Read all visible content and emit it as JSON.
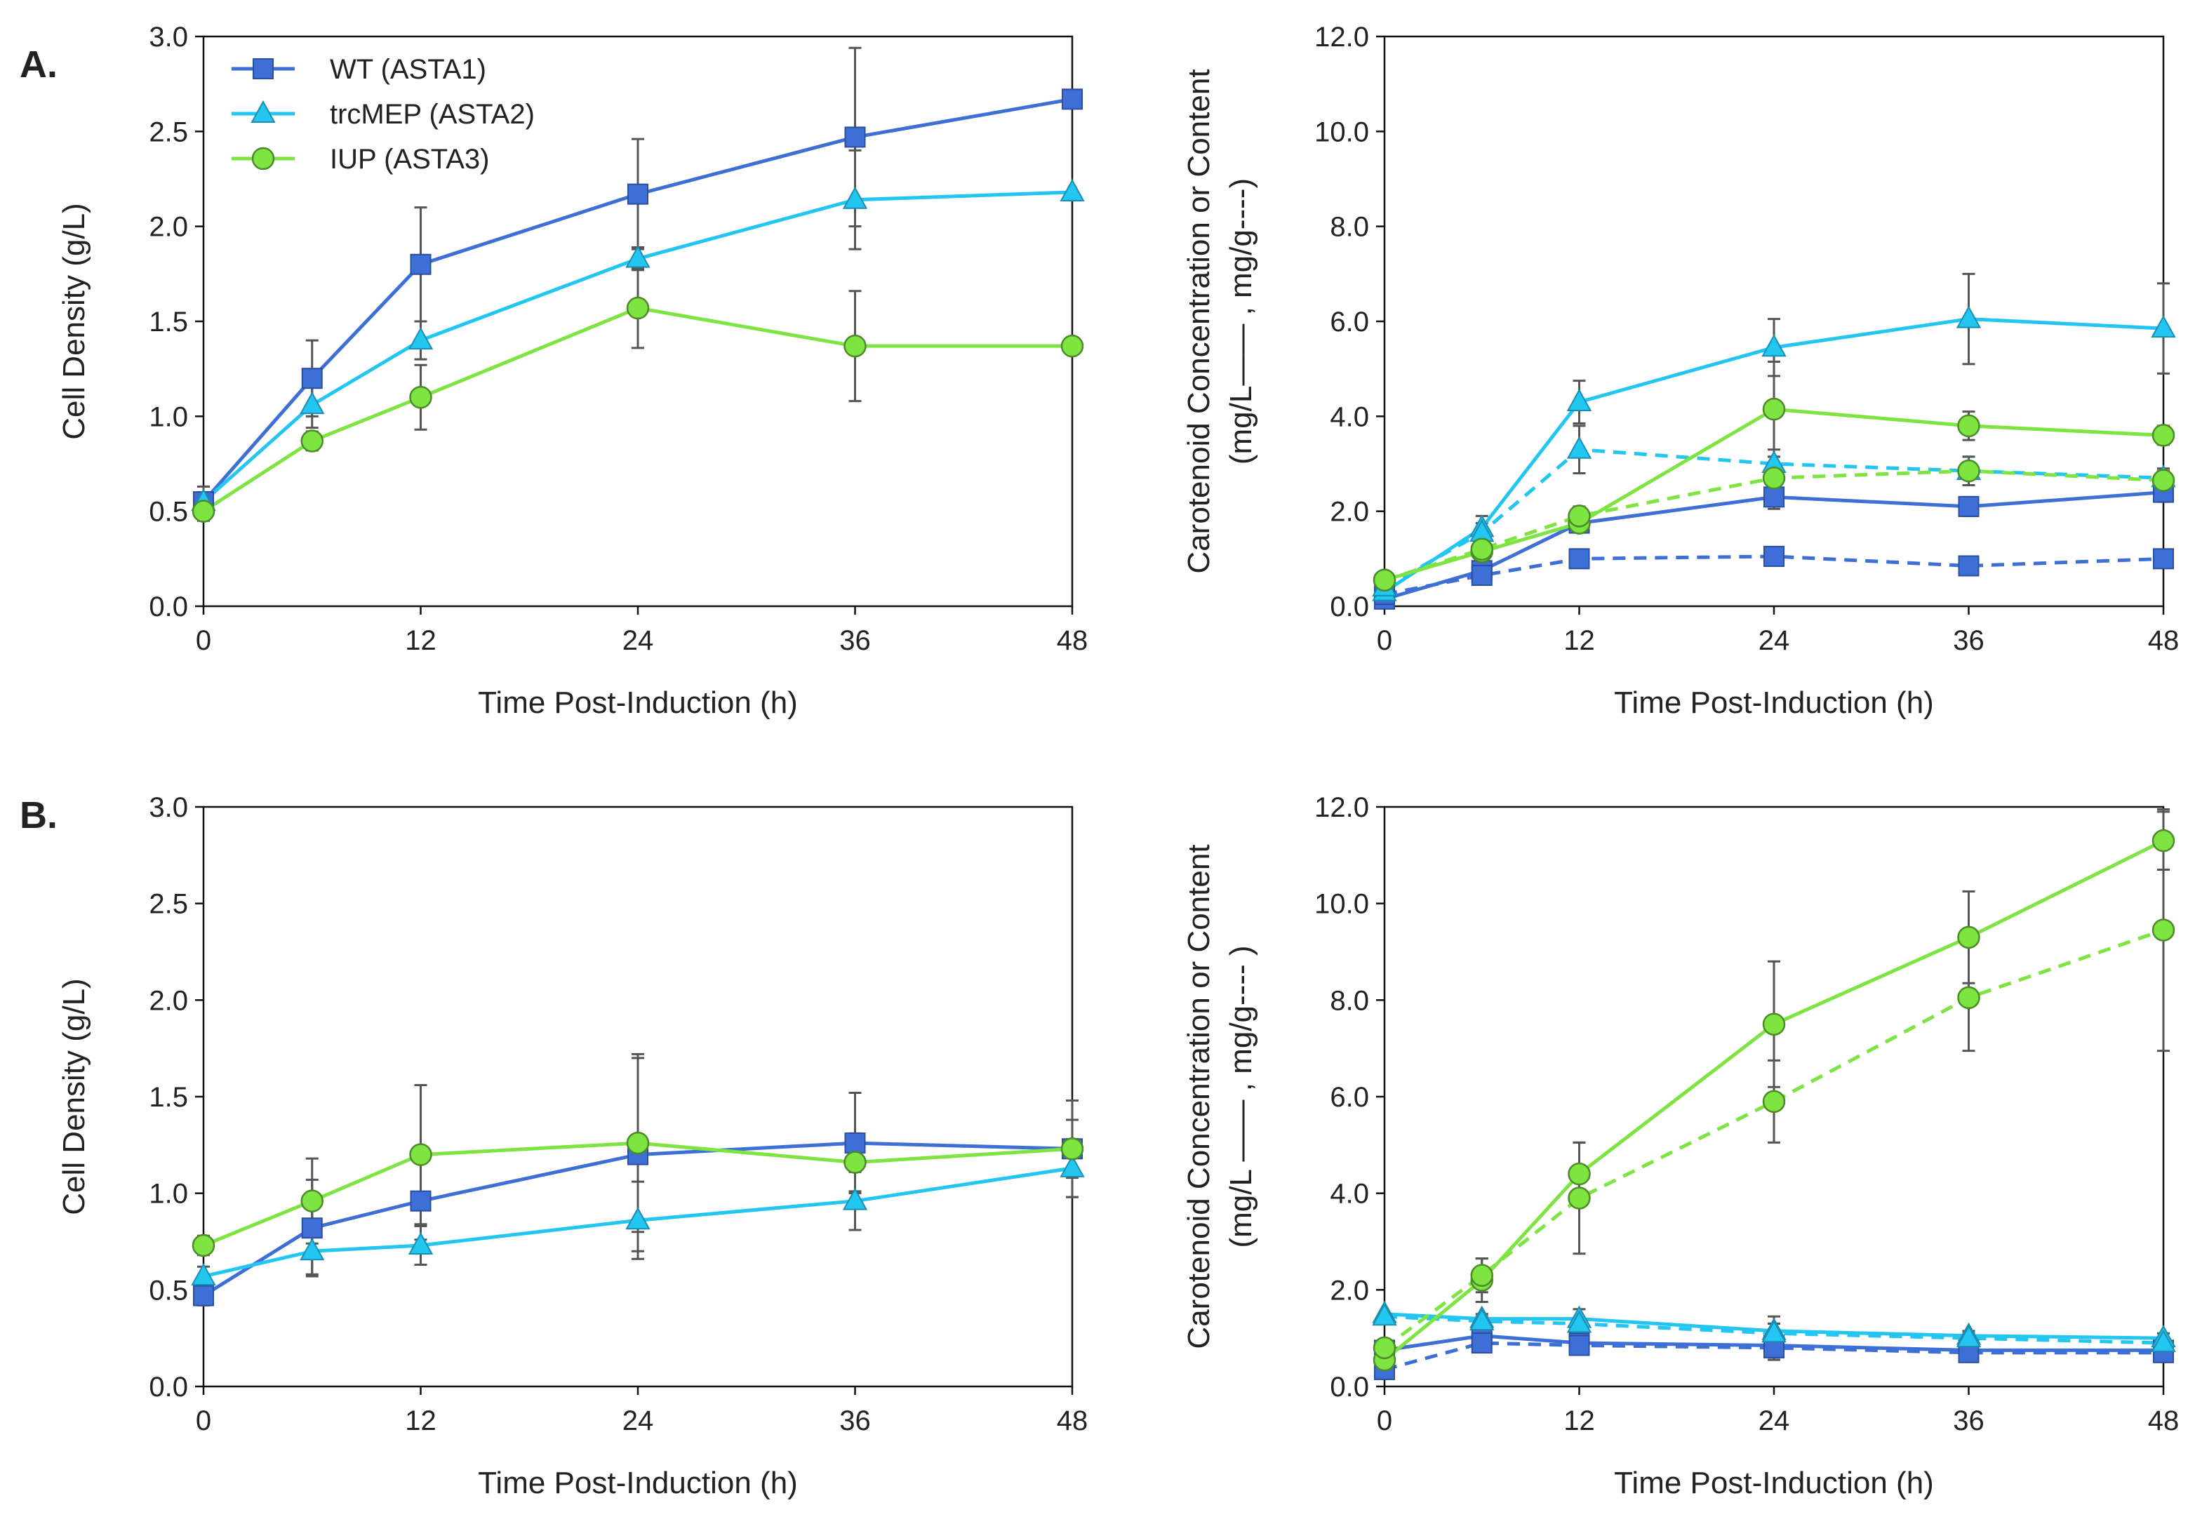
{
  "figure": {
    "panel_labels": [
      "A.",
      "B."
    ],
    "series_colors": {
      "WT": "#3d6fd6",
      "trcMEP": "#22c6f0",
      "IUP": "#7ee442"
    },
    "legend": [
      {
        "key": "WT",
        "label": "WT (ASTA1)",
        "marker": "square"
      },
      {
        "key": "trcMEP",
        "label": "trcMEP (ASTA2)",
        "marker": "triangle"
      },
      {
        "key": "IUP",
        "label": "IUP (ASTA3)",
        "marker": "circle"
      }
    ]
  },
  "chart_data": [
    {
      "id": "A-left",
      "type": "line",
      "xlabel": "Time Post-Induction (h)",
      "ylabel": "Cell Density (g/L)",
      "xlim": [
        0,
        48
      ],
      "ylim": [
        0,
        3.0
      ],
      "x_ticks": [
        0,
        12,
        24,
        36,
        48
      ],
      "y_ticks": [
        "0.0",
        "0.5",
        "1.0",
        "1.5",
        "2.0",
        "2.5",
        "3.0"
      ],
      "x": [
        0,
        6,
        12,
        24,
        36,
        48
      ],
      "series": [
        {
          "key": "WT",
          "name": "WT (ASTA1)",
          "style": "solid",
          "values": [
            0.55,
            1.2,
            1.8,
            2.17,
            2.47,
            2.67
          ],
          "err": [
            0.08,
            0.2,
            0.3,
            0.29,
            0.47,
            0.0
          ]
        },
        {
          "key": "trcMEP",
          "name": "trcMEP (ASTA2)",
          "style": "solid",
          "values": [
            0.55,
            1.06,
            1.4,
            1.83,
            2.14,
            2.18
          ],
          "err": [
            0.05,
            0.12,
            0.1,
            0.06,
            0.26,
            0.0
          ]
        },
        {
          "key": "IUP",
          "name": "IUP (ASTA3)",
          "style": "solid",
          "values": [
            0.5,
            0.87,
            1.1,
            1.57,
            1.37,
            1.37
          ],
          "err": [
            0.05,
            0.05,
            0.17,
            0.21,
            0.29,
            0.0
          ]
        }
      ]
    },
    {
      "id": "A-right",
      "type": "line",
      "xlabel": "Time Post-Induction (h)",
      "ylabel_line1": "Carotenoid Concentration or Content",
      "ylabel_line2": "(mg/L—— , mg/g----)",
      "xlim": [
        0,
        48
      ],
      "ylim": [
        0,
        12.0
      ],
      "x_ticks": [
        0,
        12,
        24,
        36,
        48
      ],
      "y_ticks": [
        "0.0",
        "2.0",
        "4.0",
        "6.0",
        "8.0",
        "10.0",
        "12.0"
      ],
      "x": [
        0,
        6,
        12,
        24,
        36,
        48
      ],
      "series": [
        {
          "key": "WT",
          "name": "WT mg/L",
          "style": "solid",
          "values": [
            0.15,
            0.75,
            1.75,
            2.3,
            2.1,
            2.4
          ],
          "err": [
            0.0,
            0.1,
            0.15,
            0.25,
            0.2,
            0.2
          ]
        },
        {
          "key": "WT",
          "name": "WT mg/g",
          "style": "dashed",
          "values": [
            0.25,
            0.65,
            1.0,
            1.05,
            0.85,
            1.0
          ],
          "err": [
            0.0,
            0.05,
            0.1,
            0.15,
            0.1,
            0.05
          ]
        },
        {
          "key": "trcMEP",
          "name": "trcMEP mg/L",
          "style": "solid",
          "values": [
            0.3,
            1.65,
            4.3,
            5.45,
            6.05,
            5.85
          ],
          "err": [
            0.0,
            0.25,
            0.45,
            0.6,
            0.95,
            0.95
          ]
        },
        {
          "key": "trcMEP",
          "name": "trcMEP mg/g",
          "style": "dashed",
          "values": [
            0.4,
            1.55,
            3.3,
            3.0,
            2.85,
            2.7
          ],
          "err": [
            0.0,
            0.2,
            0.5,
            0.3,
            0.3,
            0.2
          ]
        },
        {
          "key": "IUP",
          "name": "IUP mg/L",
          "style": "solid",
          "values": [
            0.55,
            1.15,
            1.75,
            4.15,
            3.8,
            3.6
          ],
          "err": [
            0.0,
            0.15,
            0.2,
            1.0,
            0.3,
            0.2
          ]
        },
        {
          "key": "IUP",
          "name": "IUP mg/g",
          "style": "dashed",
          "values": [
            0.55,
            1.2,
            1.9,
            2.7,
            2.85,
            2.65
          ],
          "err": [
            0.0,
            0.1,
            0.2,
            0.45,
            0.3,
            0.2
          ]
        }
      ]
    },
    {
      "id": "B-left",
      "type": "line",
      "xlabel": "Time Post-Induction (h)",
      "ylabel": "Cell Density (g/L)",
      "xlim": [
        0,
        48
      ],
      "ylim": [
        0,
        3.0
      ],
      "x_ticks": [
        0,
        12,
        24,
        36,
        48
      ],
      "y_ticks": [
        "0.0",
        "0.5",
        "1.0",
        "1.5",
        "2.0",
        "2.5",
        "3.0"
      ],
      "x": [
        0,
        6,
        12,
        24,
        36,
        48
      ],
      "series": [
        {
          "key": "WT",
          "name": "WT (ASTA1)",
          "style": "solid",
          "values": [
            0.47,
            0.82,
            0.96,
            1.2,
            1.26,
            1.23
          ],
          "err": [
            0.05,
            0.25,
            0.2,
            0.5,
            0.26,
            0.25
          ]
        },
        {
          "key": "trcMEP",
          "name": "trcMEP (ASTA2)",
          "style": "solid",
          "values": [
            0.57,
            0.7,
            0.73,
            0.86,
            0.96,
            1.13
          ],
          "err": [
            0.05,
            0.12,
            0.1,
            0.2,
            0.15,
            0.15
          ]
        },
        {
          "key": "IUP",
          "name": "IUP (ASTA3)",
          "style": "solid",
          "values": [
            0.73,
            0.96,
            1.2,
            1.26,
            1.16,
            1.23
          ],
          "err": [
            0.05,
            0.22,
            0.36,
            0.46,
            0.15,
            0.15
          ]
        }
      ]
    },
    {
      "id": "B-right",
      "type": "line",
      "xlabel": "Time Post-Induction (h)",
      "ylabel_line1": "Carotenoid Concentration or Content",
      "ylabel_line2": "(mg/L —— , mg/g---- )",
      "xlim": [
        0,
        48
      ],
      "ylim": [
        0,
        12.0
      ],
      "x_ticks": [
        0,
        12,
        24,
        36,
        48
      ],
      "y_ticks": [
        "0.0",
        "2.0",
        "4.0",
        "6.0",
        "8.0",
        "10.0",
        "12.0"
      ],
      "x": [
        0,
        6,
        12,
        24,
        36,
        48
      ],
      "series": [
        {
          "key": "WT",
          "name": "WT mg/L",
          "style": "solid",
          "values": [
            0.75,
            1.05,
            0.9,
            0.85,
            0.75,
            0.75
          ],
          "err": [
            0.0,
            0.1,
            0.1,
            0.3,
            0.1,
            0.1
          ]
        },
        {
          "key": "WT",
          "name": "WT mg/g",
          "style": "dashed",
          "values": [
            0.35,
            0.9,
            0.85,
            0.8,
            0.7,
            0.7
          ],
          "err": [
            0.0,
            0.1,
            0.1,
            0.2,
            0.1,
            0.1
          ]
        },
        {
          "key": "trcMEP",
          "name": "trcMEP mg/L",
          "style": "solid",
          "values": [
            1.5,
            1.4,
            1.4,
            1.15,
            1.05,
            1.0
          ],
          "err": [
            0.0,
            0.1,
            0.2,
            0.3,
            0.1,
            0.1
          ]
        },
        {
          "key": "trcMEP",
          "name": "trcMEP mg/g",
          "style": "dashed",
          "values": [
            1.45,
            1.35,
            1.3,
            1.1,
            1.0,
            0.9
          ],
          "err": [
            0.0,
            0.1,
            0.1,
            0.2,
            0.1,
            0.1
          ]
        },
        {
          "key": "IUP",
          "name": "IUP mg/L",
          "style": "solid",
          "values": [
            0.55,
            2.2,
            4.4,
            7.5,
            9.3,
            11.3
          ],
          "err": [
            0.0,
            0.45,
            0.65,
            1.3,
            0.95,
            0.6
          ]
        },
        {
          "key": "IUP",
          "name": "IUP mg/g",
          "style": "dashed",
          "values": [
            0.8,
            2.3,
            3.9,
            5.9,
            8.05,
            9.45
          ],
          "err": [
            0.0,
            0.35,
            1.15,
            0.85,
            1.1,
            2.5
          ]
        }
      ]
    }
  ]
}
